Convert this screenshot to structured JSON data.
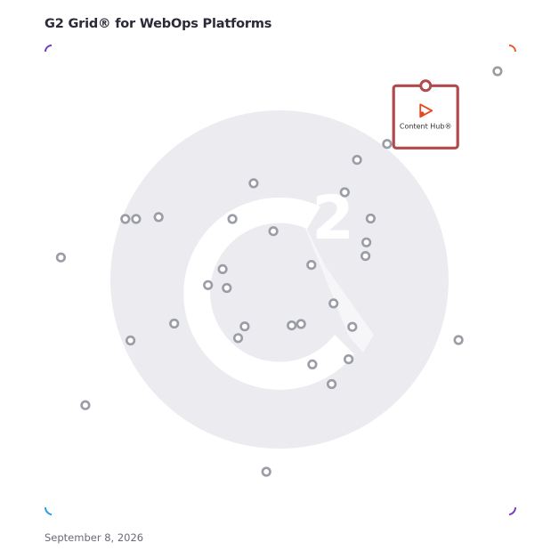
{
  "title": "G2 Grid® for WebOps Platforms",
  "date": "September 8, 2026",
  "chart_data": {
    "type": "scatter",
    "title": "G2 Grid® for WebOps Platforms",
    "xlabel": "",
    "ylabel": "",
    "xlim": [
      0,
      100
    ],
    "ylim": [
      0,
      100
    ],
    "quadrant_split": {
      "x": 50,
      "y": 50
    },
    "grid": false,
    "points": [
      {
        "x": 96.2,
        "y": 94.5
      },
      {
        "x": 72.7,
        "y": 79.0
      },
      {
        "x": 66.3,
        "y": 75.6
      },
      {
        "x": 44.3,
        "y": 70.6
      },
      {
        "x": 63.7,
        "y": 68.7
      },
      {
        "x": 69.2,
        "y": 63.1
      },
      {
        "x": 19.3,
        "y": 63.0
      },
      {
        "x": 17.0,
        "y": 63.0
      },
      {
        "x": 24.1,
        "y": 63.4
      },
      {
        "x": 39.8,
        "y": 63.0
      },
      {
        "x": 48.5,
        "y": 60.4
      },
      {
        "x": 68.3,
        "y": 58.0
      },
      {
        "x": 68.1,
        "y": 55.1
      },
      {
        "x": 3.3,
        "y": 54.8
      },
      {
        "x": 56.6,
        "y": 53.2
      },
      {
        "x": 37.7,
        "y": 52.3
      },
      {
        "x": 34.6,
        "y": 48.9
      },
      {
        "x": 38.6,
        "y": 48.3
      },
      {
        "x": 61.3,
        "y": 45.0
      },
      {
        "x": 54.4,
        "y": 40.6
      },
      {
        "x": 52.4,
        "y": 40.3
      },
      {
        "x": 27.4,
        "y": 40.7
      },
      {
        "x": 42.4,
        "y": 40.1
      },
      {
        "x": 65.3,
        "y": 40.0
      },
      {
        "x": 87.9,
        "y": 37.2
      },
      {
        "x": 18.1,
        "y": 37.1
      },
      {
        "x": 41.0,
        "y": 37.6
      },
      {
        "x": 64.5,
        "y": 33.1
      },
      {
        "x": 56.8,
        "y": 32.0
      },
      {
        "x": 60.9,
        "y": 27.8
      },
      {
        "x": 8.5,
        "y": 23.3
      },
      {
        "x": 47.0,
        "y": 9.1
      }
    ],
    "highlight": {
      "name": "Content Hub",
      "label": "Content Hub",
      "x": 80.9,
      "y": 91.4,
      "marker_color": "#b04a4c",
      "logo_color": "#e8471f"
    }
  },
  "colors": {
    "frame_top": "#7a3bc4",
    "frame_right": "#e8563a",
    "frame_left": "#2a8ee0",
    "frame_bottom": "#7a3bc4",
    "divider_vertical": "#9a7fd0",
    "divider_horizontal": "#7d6ad0",
    "point_stroke": "#9a9ca6",
    "watermark": "#ececf0"
  }
}
